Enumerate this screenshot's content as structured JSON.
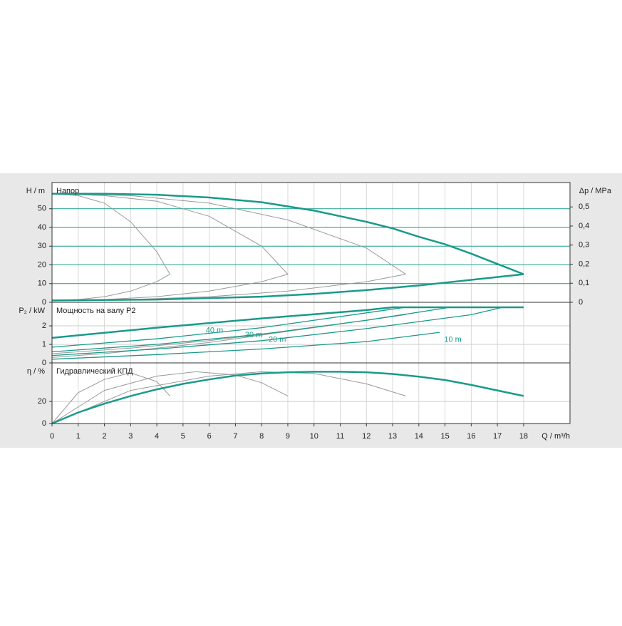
{
  "chart_data": [
    {
      "type": "line",
      "title": "Напор",
      "y_label": "H / m",
      "y2_label": "Δp / MPa",
      "xlim": [
        0,
        19.77
      ],
      "ylim": [
        0,
        64
      ],
      "yticks": [
        0,
        10,
        20,
        30,
        40,
        50
      ],
      "y2lim": [
        0,
        0.628
      ],
      "y2ticks": [
        0,
        {
          "value": 0.1,
          "label": "0,1"
        },
        {
          "value": 0.2,
          "label": "0,2"
        },
        {
          "value": 0.3,
          "label": "0,3"
        },
        {
          "value": 0.4,
          "label": "0,4"
        },
        {
          "value": 0.5,
          "label": "0,5"
        }
      ],
      "grid": true,
      "grid_color": "#1a9a8a",
      "series": [
        {
          "color": "#999999",
          "width": 1,
          "x": [
            0,
            1,
            2,
            3,
            4,
            4.5
          ],
          "values": [
            58,
            57,
            53,
            43,
            27,
            15
          ]
        },
        {
          "color": "#999999",
          "width": 1,
          "x": [
            0,
            2,
            4,
            6,
            8,
            9
          ],
          "values": [
            58,
            57,
            54,
            46,
            30,
            15
          ]
        },
        {
          "color": "#999999",
          "width": 1,
          "x": [
            0,
            3,
            6,
            9,
            12,
            13.5
          ],
          "values": [
            58,
            57,
            53,
            44,
            29,
            15
          ]
        },
        {
          "color": "#999999",
          "width": 1,
          "x": [
            0,
            1,
            2,
            3,
            4,
            4.5
          ],
          "values": [
            1,
            1.5,
            3,
            6,
            11,
            15
          ]
        },
        {
          "color": "#999999",
          "width": 1,
          "x": [
            0,
            2,
            4,
            6,
            8,
            9
          ],
          "values": [
            1,
            1.5,
            3,
            6,
            11,
            15
          ]
        },
        {
          "color": "#999999",
          "width": 1,
          "x": [
            0,
            3,
            6,
            9,
            12,
            13.5
          ],
          "values": [
            1,
            1.5,
            3,
            6,
            11,
            15
          ]
        },
        {
          "color": "#1a9a8a",
          "width": 2.5,
          "x": [
            0,
            2,
            4,
            6,
            8,
            10,
            12,
            13,
            14,
            15,
            16,
            17,
            18
          ],
          "values": [
            58,
            58,
            57.5,
            56,
            53.5,
            49,
            43,
            39.5,
            35,
            31,
            26,
            20.5,
            15
          ]
        },
        {
          "color": "#1a9a8a",
          "width": 2.5,
          "x": [
            0,
            4,
            8,
            10,
            12,
            14,
            16,
            18
          ],
          "values": [
            1,
            1.5,
            3,
            4.5,
            6.5,
            9,
            12,
            15
          ]
        }
      ]
    },
    {
      "type": "line",
      "title": "Мощность на валу P2",
      "y_label": "P₂ / kW",
      "xlim": [
        0,
        19.77
      ],
      "ylim": [
        0,
        3.27
      ],
      "yticks": [
        0,
        1,
        2
      ],
      "grid": true,
      "grid_color": "#cccccc",
      "annotations": [
        "40 m",
        "30 m",
        "20 m",
        "10 m"
      ],
      "series": [
        {
          "color": "#999999",
          "width": 1,
          "x": [
            0,
            3,
            6,
            9,
            12,
            13.5
          ],
          "values": [
            0.5,
            0.8,
            1.2,
            1.7,
            2.3,
            2.6
          ]
        },
        {
          "color": "#999999",
          "width": 1,
          "x": [
            0,
            2,
            4,
            6,
            8,
            9
          ],
          "values": [
            0.3,
            0.5,
            0.8,
            1.1,
            1.5,
            1.7
          ]
        },
        {
          "color": "#1a9a8a",
          "width": 1.3,
          "x": [
            0,
            4,
            8,
            12,
            13.5
          ],
          "values": [
            0.85,
            1.3,
            1.9,
            2.7,
            3
          ]
        },
        {
          "color": "#1a9a8a",
          "width": 1.3,
          "x": [
            0,
            4,
            8,
            12,
            15.2
          ],
          "values": [
            0.6,
            1,
            1.55,
            2.3,
            3
          ]
        },
        {
          "color": "#1a9a8a",
          "width": 1.3,
          "x": [
            0,
            4,
            8,
            12,
            16,
            17.2
          ],
          "values": [
            0.4,
            0.75,
            1.2,
            1.85,
            2.6,
            3
          ]
        },
        {
          "color": "#1a9a8a",
          "width": 1.3,
          "x": [
            0,
            4,
            8,
            12,
            14.8
          ],
          "values": [
            0.2,
            0.45,
            0.75,
            1.15,
            1.65
          ]
        },
        {
          "color": "#1a9a8a",
          "width": 2.5,
          "x": [
            0,
            4,
            8,
            12,
            13,
            18
          ],
          "values": [
            1.35,
            1.9,
            2.4,
            2.85,
            3,
            3
          ]
        }
      ]
    },
    {
      "type": "line",
      "title": "Гидравлический КПД",
      "y_label": "η / %",
      "x_label": "Q / m³/h",
      "xlim": [
        0,
        19.77
      ],
      "xticks": [
        0,
        1,
        2,
        3,
        4,
        5,
        6,
        7,
        8,
        9,
        10,
        11,
        12,
        13,
        14,
        15,
        16,
        17,
        18
      ],
      "ylim": [
        0,
        55
      ],
      "yticks": [
        0,
        20
      ],
      "grid": true,
      "grid_color": "#cccccc",
      "series": [
        {
          "color": "#999999",
          "width": 1,
          "x": [
            0,
            1,
            2,
            3,
            4,
            4.5
          ],
          "values": [
            0,
            28,
            40,
            46,
            38,
            25
          ]
        },
        {
          "color": "#999999",
          "width": 1,
          "x": [
            0,
            2,
            4,
            5.5,
            7,
            8,
            9
          ],
          "values": [
            0,
            30,
            43,
            47,
            44,
            37,
            25
          ]
        },
        {
          "color": "#999999",
          "width": 1,
          "x": [
            0,
            3,
            6,
            8,
            10,
            12,
            13.5
          ],
          "values": [
            0,
            30,
            43,
            47,
            45.5,
            36,
            25
          ]
        },
        {
          "color": "#1a9a8a",
          "width": 2.5,
          "x": [
            0,
            1,
            2,
            3,
            4,
            5,
            6,
            7,
            8,
            9,
            10,
            11,
            12,
            13,
            14,
            15,
            16,
            17,
            18
          ],
          "values": [
            0,
            10,
            18,
            25,
            31,
            36,
            40,
            43.5,
            45.5,
            46.5,
            47,
            47,
            46.5,
            45,
            42.5,
            39.5,
            35,
            30,
            25
          ]
        }
      ]
    }
  ]
}
